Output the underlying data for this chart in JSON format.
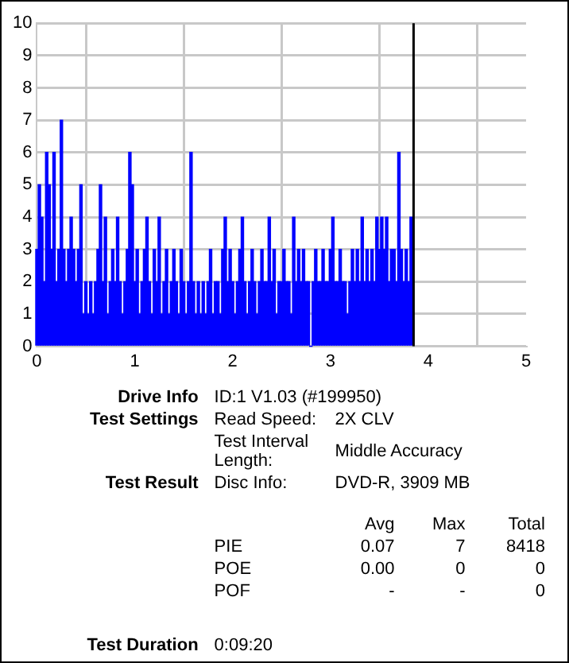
{
  "chart_data": {
    "type": "bar",
    "x": [
      0,
      0.025,
      0.05,
      0.075,
      0.1,
      0.125,
      0.15,
      0.175,
      0.2,
      0.225,
      0.25,
      0.275,
      0.3,
      0.325,
      0.35,
      0.375,
      0.4,
      0.425,
      0.45,
      0.475,
      0.5,
      0.525,
      0.55,
      0.575,
      0.6,
      0.625,
      0.65,
      0.675,
      0.7,
      0.725,
      0.75,
      0.775,
      0.8,
      0.825,
      0.85,
      0.875,
      0.9,
      0.925,
      0.95,
      0.975,
      1,
      1.025,
      1.05,
      1.075,
      1.1,
      1.125,
      1.15,
      1.175,
      1.2,
      1.225,
      1.25,
      1.275,
      1.3,
      1.325,
      1.35,
      1.375,
      1.4,
      1.425,
      1.45,
      1.475,
      1.5,
      1.525,
      1.55,
      1.575,
      1.6,
      1.625,
      1.65,
      1.675,
      1.7,
      1.725,
      1.75,
      1.775,
      1.8,
      1.825,
      1.85,
      1.875,
      1.9,
      1.925,
      1.95,
      1.975,
      2,
      2.025,
      2.05,
      2.075,
      2.1,
      2.125,
      2.15,
      2.175,
      2.2,
      2.225,
      2.25,
      2.275,
      2.3,
      2.325,
      2.35,
      2.375,
      2.4,
      2.425,
      2.45,
      2.475,
      2.5,
      2.525,
      2.55,
      2.575,
      2.6,
      2.625,
      2.65,
      2.675,
      2.7,
      2.725,
      2.75,
      2.775,
      2.8,
      2.825,
      2.85,
      2.875,
      2.9,
      2.925,
      2.95,
      2.975,
      3,
      3.025,
      3.05,
      3.075,
      3.1,
      3.125,
      3.15,
      3.175,
      3.2,
      3.225,
      3.25,
      3.275,
      3.3,
      3.325,
      3.35,
      3.375,
      3.4,
      3.425,
      3.45,
      3.475,
      3.5,
      3.525,
      3.55,
      3.575,
      3.6,
      3.625,
      3.65,
      3.675,
      3.7,
      3.725,
      3.75,
      3.775,
      3.8,
      3.825
    ],
    "values": [
      3,
      5,
      4,
      2,
      6,
      5,
      3,
      6,
      2,
      3,
      7,
      3,
      2,
      3,
      4,
      3,
      2,
      3,
      5,
      1,
      2,
      1,
      2,
      1,
      2,
      3,
      5,
      2,
      4,
      1,
      2,
      3,
      2,
      4,
      2,
      1,
      2,
      3,
      6,
      5,
      2,
      3,
      1,
      2,
      3,
      4,
      2,
      1,
      3,
      2,
      4,
      1,
      2,
      3,
      1,
      2,
      3,
      2,
      1,
      3,
      2,
      1,
      2,
      6,
      2,
      1,
      2,
      1,
      2,
      1,
      2,
      3,
      1,
      2,
      2,
      1,
      3,
      4,
      2,
      3,
      2,
      1,
      2,
      3,
      4,
      2,
      1,
      2,
      3,
      2,
      1,
      2,
      3,
      2,
      2,
      4,
      2,
      3,
      1,
      2,
      2,
      3,
      2,
      2,
      1,
      4,
      2,
      3,
      2,
      3,
      2,
      2,
      0,
      2,
      3,
      2,
      2,
      3,
      2,
      2,
      3,
      4,
      2,
      2,
      3,
      2,
      2,
      1,
      2,
      3,
      2,
      3,
      2,
      4,
      2,
      3,
      2,
      3,
      2,
      4,
      3,
      4,
      3,
      4,
      2,
      3,
      3,
      2,
      6,
      3,
      2,
      3,
      2,
      4
    ],
    "color": "#0000ff",
    "xlim": [
      0,
      5
    ],
    "xticks": [
      0,
      1,
      2,
      3,
      4,
      5
    ],
    "ylim": [
      0,
      10
    ],
    "yticks": [
      0,
      1,
      2,
      3,
      4,
      5,
      6,
      7,
      8,
      9,
      10
    ],
    "grid": true,
    "legend": false,
    "ref_lines": [
      {
        "axis": "x",
        "value": 3.85,
        "color": "#000000"
      }
    ],
    "annotations": [
      "Drive Info",
      "ID:1 V1.03 (#199950)",
      "Test Settings",
      "Read Speed:",
      "2X CLV",
      "Test Interval Length:",
      "Middle Accuracy",
      "Test Result",
      "Disc Info:",
      "DVD-R, 3909 MB",
      "Avg",
      "Max",
      "Total",
      "PIE",
      "0.07",
      "7",
      "8418",
      "POE",
      "0.00",
      "0",
      "0",
      "POF",
      "-",
      "-",
      "0",
      "Test Duration",
      "0:09:20"
    ]
  }
}
